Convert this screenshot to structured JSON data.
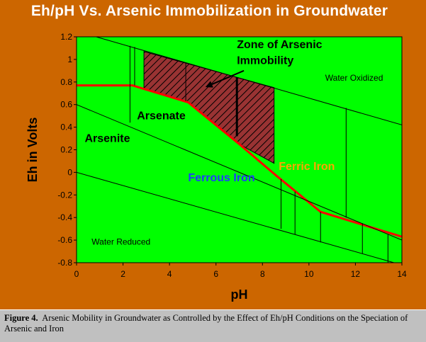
{
  "caption": {
    "label": "Figure 4.",
    "text": "Arsenic Mobility in Groundwater as Controlled by the Effect of Eh/pH Conditions on the Speciation of Arsenic and Iron"
  },
  "colors": {
    "background": "#cc6600",
    "plot_area": "#00ff00",
    "boundary": "#ff0000",
    "zone_hatch": "#993333",
    "ferric_iron": "#ffa500",
    "ferrous_iron": "#1e3cff"
  },
  "chart_data": {
    "type": "line",
    "title": "Eh/pH Vs. Arsenic Immobilization in Groundwater",
    "xlabel": "pH",
    "ylabel": "Eh in Volts",
    "xlim": [
      0,
      14
    ],
    "ylim": [
      -0.8,
      1.2
    ],
    "x_ticks": [
      "0",
      "2",
      "4",
      "6",
      "8",
      "10",
      "12",
      "14"
    ],
    "y_ticks": [
      "1.2",
      "1",
      "0.8",
      "0.6",
      "0.4",
      "0.2",
      "0",
      "-0.2",
      "-0.4",
      "-0.6",
      "-0.8"
    ],
    "grid": false,
    "series": [
      {
        "name": "",
        "style": "boundary-red",
        "points": [
          [
            0,
            0.77
          ],
          [
            2.4,
            0.77
          ],
          [
            4.8,
            0.62
          ],
          [
            7.0,
            0.25
          ],
          [
            8.6,
            -0.03
          ],
          [
            10.5,
            -0.35
          ],
          [
            14,
            -0.57
          ]
        ]
      },
      {
        "name": "",
        "style": "thin",
        "points": [
          [
            0,
            1.25
          ],
          [
            14,
            0.42
          ]
        ]
      },
      {
        "name": "",
        "style": "thin",
        "points": [
          [
            0,
            0.6
          ],
          [
            14,
            -0.6
          ]
        ]
      },
      {
        "name": "",
        "style": "thin",
        "points": [
          [
            0,
            0.0
          ],
          [
            14,
            -0.82
          ]
        ]
      }
    ],
    "verticals": [
      {
        "x": 2.3,
        "y_from": 0.44,
        "y_to": 1.12
      },
      {
        "x": 2.5,
        "y_from": 0.77,
        "y_to": 1.11
      },
      {
        "x": 4.7,
        "y_from": 0.63,
        "y_to": 0.97
      },
      {
        "x": 8.8,
        "y_from": -0.5,
        "y_to": -0.06
      },
      {
        "x": 9.4,
        "y_from": -0.55,
        "y_to": -0.17
      },
      {
        "x": 10.5,
        "y_from": -0.62,
        "y_to": -0.35
      },
      {
        "x": 11.6,
        "y_from": -0.4,
        "y_to": 0.57
      },
      {
        "x": 12.3,
        "y_from": -0.72,
        "y_to": -0.45
      },
      {
        "x": 13.4,
        "y_from": -0.8,
        "y_to": -0.55
      }
    ],
    "zone": {
      "name": "Zone of Arsenic Immobility",
      "polygon": [
        [
          2.9,
          1.07
        ],
        [
          8.5,
          0.75
        ],
        [
          8.5,
          0.08
        ],
        [
          7.0,
          0.25
        ],
        [
          4.8,
          0.62
        ],
        [
          2.9,
          0.74
        ]
      ],
      "divider_x": 6.9
    },
    "annotations": [
      {
        "text": "Zone of Arsenic",
        "x": 6.9,
        "y": 1.1,
        "size": 16,
        "weight": "bold",
        "color": "#000000"
      },
      {
        "text": "Immobility",
        "x": 6.9,
        "y": 0.96,
        "size": 16,
        "weight": "bold",
        "color": "#000000"
      },
      {
        "text": "Water Oxidized",
        "x": 10.7,
        "y": 0.81,
        "size": 12,
        "weight": "normal",
        "color": "#000000"
      },
      {
        "text": "Arsenate",
        "x": 2.6,
        "y": 0.47,
        "size": 16,
        "weight": "bold",
        "color": "#000000"
      },
      {
        "text": "Arsenite",
        "x": 0.35,
        "y": 0.27,
        "size": 16,
        "weight": "bold",
        "color": "#000000"
      },
      {
        "text": "Ferric Iron",
        "x": 8.7,
        "y": 0.02,
        "size": 16,
        "weight": "bold",
        "color": "#ffa500"
      },
      {
        "text": "Ferrous Iron",
        "x": 4.8,
        "y": -0.08,
        "size": 16,
        "weight": "bold",
        "color": "#1e3cff"
      },
      {
        "text": "Water Reduced",
        "x": 0.65,
        "y": -0.64,
        "size": 12,
        "weight": "normal",
        "color": "#000000"
      }
    ],
    "arrow": {
      "from": [
        7.2,
        0.9
      ],
      "to": [
        5.6,
        0.76
      ]
    }
  }
}
